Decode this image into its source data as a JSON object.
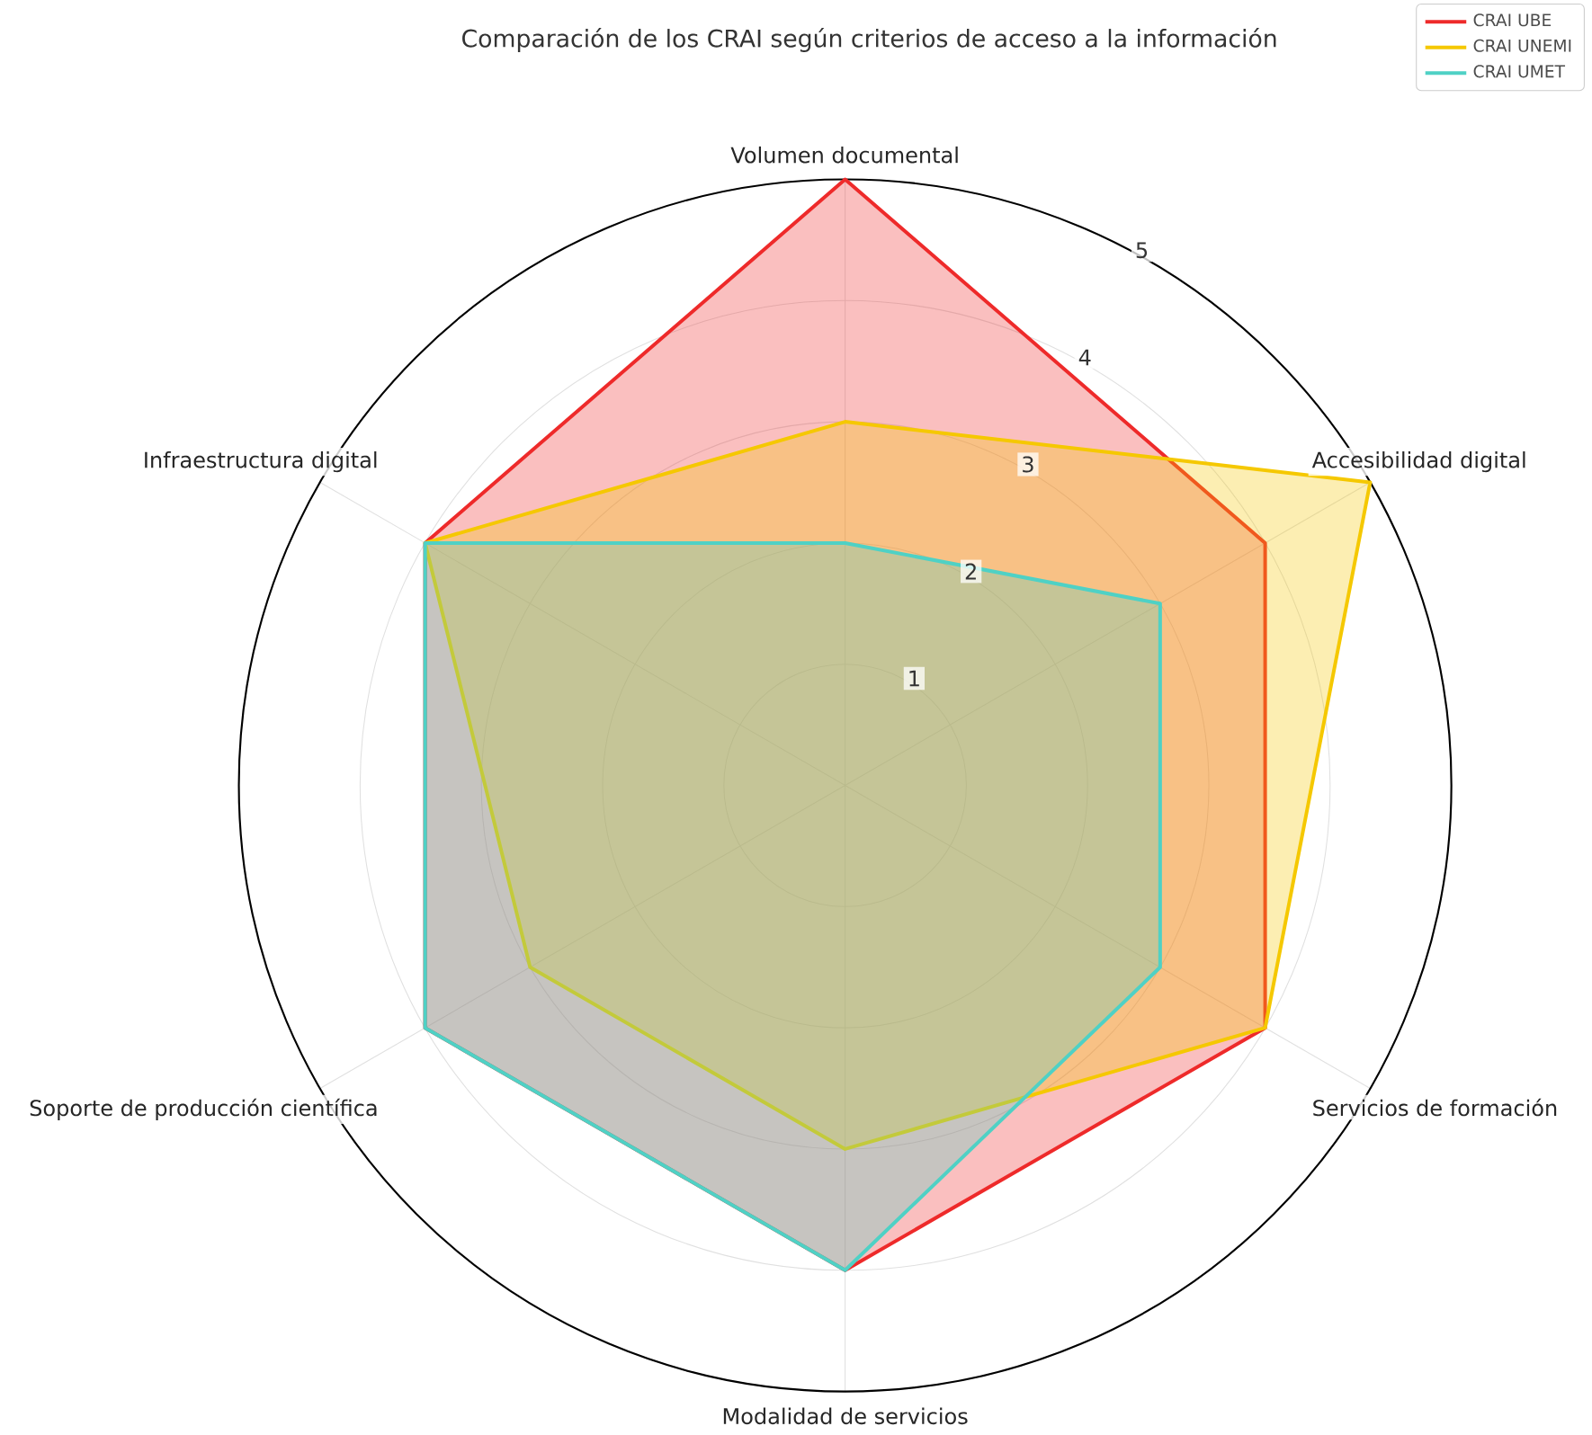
{
  "chart_data": {
    "type": "radar",
    "title": "Comparación de los CRAI según criterios de acceso a la información",
    "categories": [
      "Volumen documental",
      "Accesibilidad digital",
      "Servicios de formación",
      "Modalidad de servicios",
      "Soporte de producción científica",
      "Infraestructura digital"
    ],
    "series": [
      {
        "name": "CRAI UBE",
        "color": "#ee2a2a",
        "values": [
          5,
          4,
          4,
          4,
          4,
          4
        ]
      },
      {
        "name": "CRAI UNEMI",
        "color": "#f5c800",
        "values": [
          3,
          5,
          4,
          3,
          3,
          4
        ]
      },
      {
        "name": "CRAI UMET",
        "color": "#4fd1c5",
        "values": [
          2,
          3,
          3,
          4,
          4,
          4
        ]
      }
    ],
    "ylim": [
      0,
      5
    ],
    "yticks": [
      1,
      2,
      3,
      4,
      5
    ],
    "grid": true,
    "legend": "top right"
  }
}
